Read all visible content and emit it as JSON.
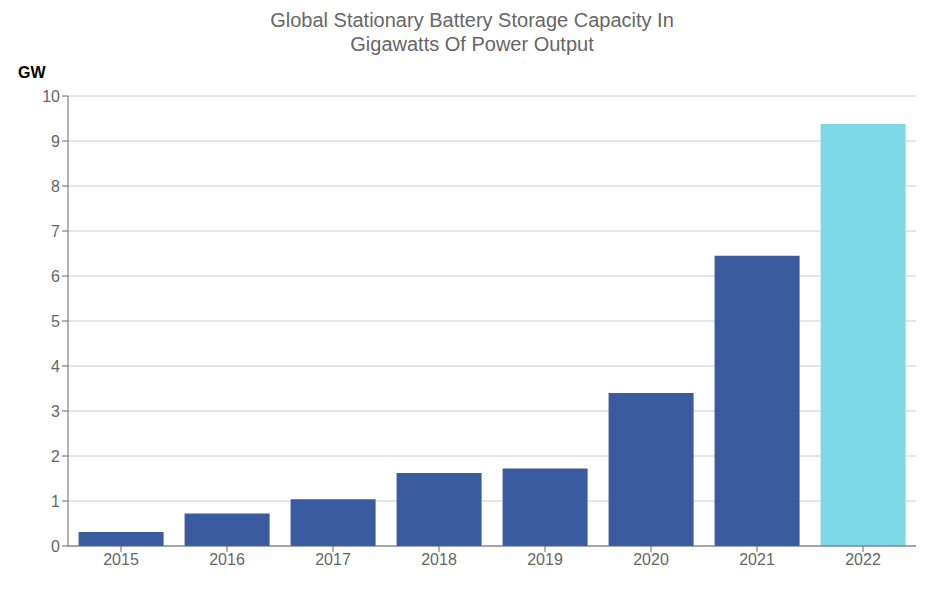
{
  "chart_data": {
    "type": "bar",
    "title": "Global Stationary Battery Storage Capacity In\nGigawatts Of Power Output",
    "ylabel": "GW",
    "categories": [
      "2015",
      "2016",
      "2017",
      "2018",
      "2019",
      "2020",
      "2021",
      "2022"
    ],
    "values": [
      0.31,
      0.72,
      1.04,
      1.62,
      1.72,
      3.4,
      6.45,
      9.38
    ],
    "colors": [
      "#3A5BA0",
      "#3A5BA0",
      "#3A5BA0",
      "#3A5BA0",
      "#3A5BA0",
      "#3A5BA0",
      "#3A5BA0",
      "#7DD9E8"
    ],
    "ylim": [
      0,
      10
    ],
    "yticks": [
      0,
      1,
      2,
      3,
      4,
      5,
      6,
      7,
      8,
      9,
      10
    ],
    "grid": true
  }
}
